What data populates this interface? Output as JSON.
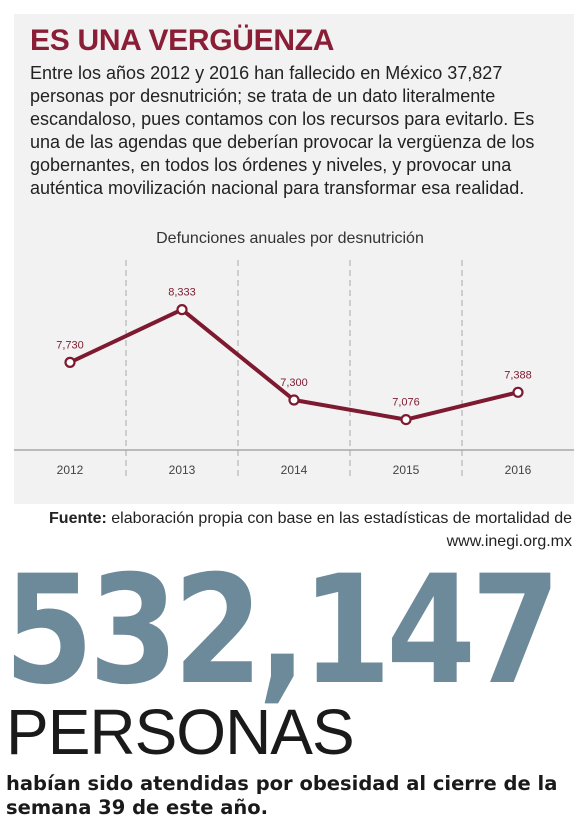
{
  "headline": "ES UNA VERGÜENZA",
  "intro": "Entre los años 2012 y 2016 han fallecido en México 37,827 personas por desnutrición; se trata de un dato literalmente escandaloso, pues contamos con los recursos para evitarlo. Es una de las agendas que deberían provocar la vergüenza de los gobernantes, en todos los órdenes y niveles, y provocar una auténtica movilización nacional para transformar esa realidad.",
  "chart_data": {
    "type": "line",
    "title": "Defunciones anuales por desnutrición",
    "categories": [
      "2012",
      "2013",
      "2014",
      "2015",
      "2016"
    ],
    "values": [
      7730,
      8333,
      7300,
      7076,
      7388
    ],
    "data_labels": [
      "7,730",
      "8,333",
      "7,300",
      "7,076",
      "7,388"
    ],
    "ylim": [
      6900,
      8500
    ],
    "grid": "vertical dashed separators",
    "line_color": "#7d1a30"
  },
  "source": {
    "label": "Fuente:",
    "text": " elaboración propia con base en las estadísticas de mortalidad de www.inegi.org.mx"
  },
  "stat": {
    "number": "532,147",
    "word": "PERSONAS",
    "caption": "habían sido atendidas por obesidad al cierre de la semana 39 de este año."
  },
  "colors": {
    "headline": "#8a1e36",
    "big_number": "#6d8a9a",
    "panel": "#f2f2f2"
  }
}
